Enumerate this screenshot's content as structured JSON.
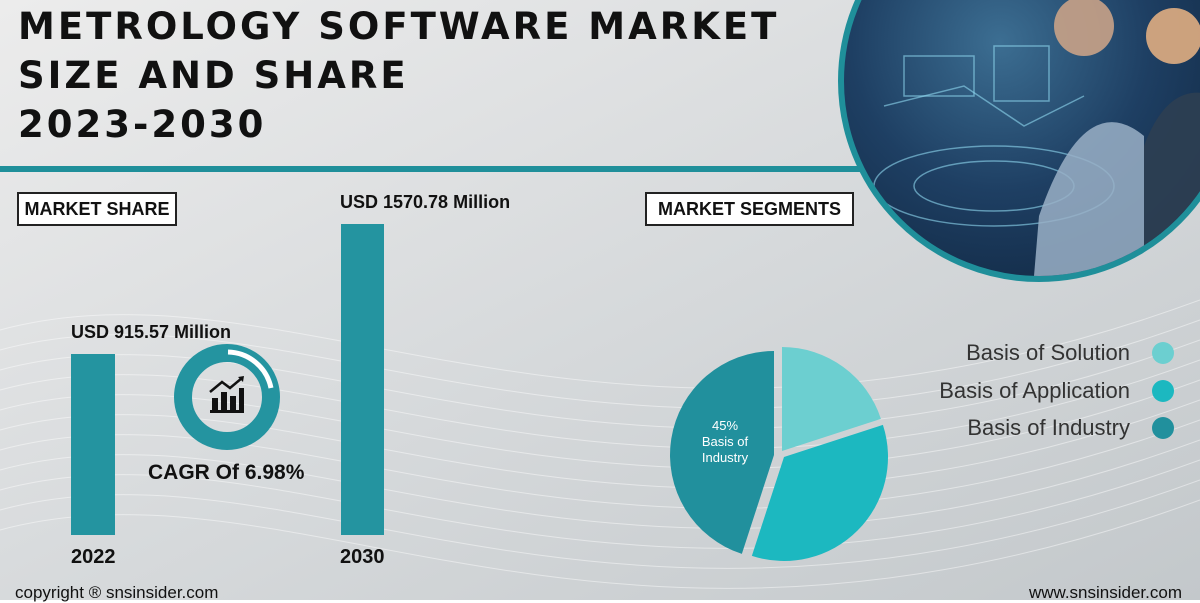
{
  "title_lines": [
    "METROLOGY SOFTWARE MARKET",
    "SIZE AND SHARE",
    "2023-2030"
  ],
  "market_share_label": "MARKET SHARE",
  "market_segments_label": "MARKET SEGMENTS",
  "cagr_label": "CAGR Of 6.98%",
  "cagr_icon": "rising-chart-icon",
  "colors": {
    "accent": "#1f8f9a",
    "bar": "#2494a0",
    "slice_solution": "#6ccfd0",
    "slice_application": "#1cb8c0",
    "slice_industry": "#21909d"
  },
  "chart_data": [
    {
      "type": "bar",
      "categories": [
        "2022",
        "2030"
      ],
      "values": [
        915.57,
        1570.78
      ],
      "value_labels": [
        "USD 915.57 Million",
        "USD 1570.78 Million"
      ],
      "ylim": [
        0,
        1570.78
      ]
    },
    {
      "type": "pie",
      "labels": [
        "Basis of Solution",
        "Basis of Application",
        "Basis of Industry"
      ],
      "values": [
        20,
        35,
        45
      ],
      "annotation": {
        "value": "45%",
        "text": "Basis of Industry"
      },
      "legend": "right"
    }
  ],
  "footer": {
    "copyright": "copyright ® snsinsider.com",
    "website": "www.snsinsider.com"
  }
}
